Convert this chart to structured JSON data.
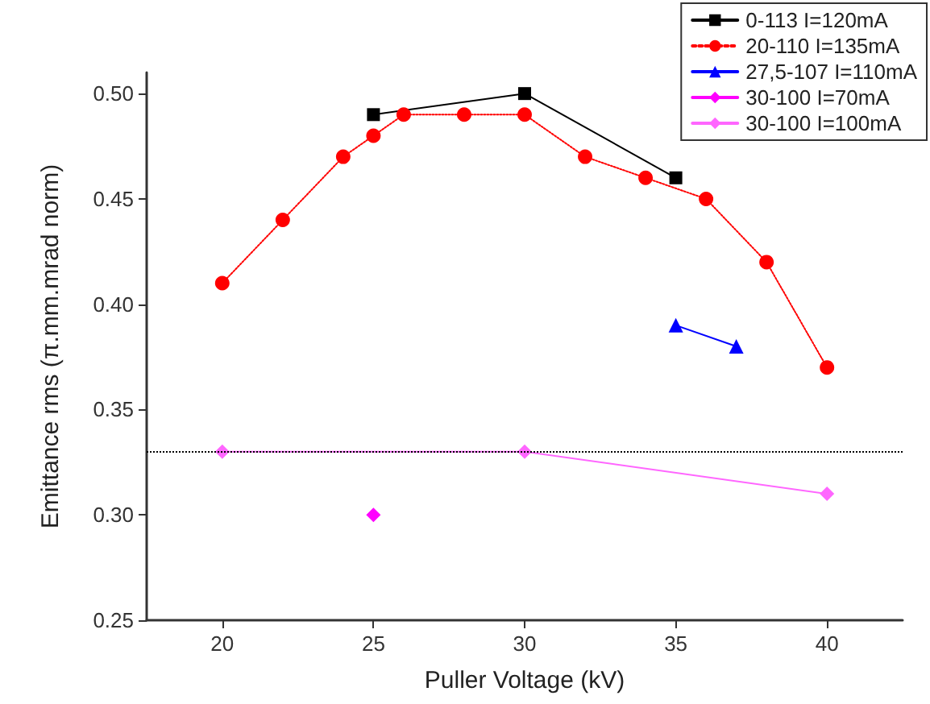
{
  "chart_data": {
    "type": "line",
    "xlabel": "Puller Voltage (kV)",
    "ylabel": "Emittance rms (π.mm.mrad norm)",
    "xlim": [
      17.5,
      42.5
    ],
    "xticks": [
      20,
      25,
      30,
      35,
      40
    ],
    "ylim": [
      0.25,
      0.51
    ],
    "yticks": [
      {
        "value": 0.25,
        "label": "0.25"
      },
      {
        "value": 0.3,
        "label": "0.30"
      },
      {
        "value": 0.35,
        "label": "0.35"
      },
      {
        "value": 0.4,
        "label": "0.40"
      },
      {
        "value": 0.45,
        "label": "0.45"
      },
      {
        "value": 0.5,
        "label": "0.50"
      }
    ],
    "grid": false,
    "legend": "top right",
    "ref_lines": [
      {
        "axis": "y",
        "value": 0.33,
        "color": "#000000",
        "line_style": "dotted"
      }
    ],
    "series": [
      {
        "name": "0-113 I=120mA",
        "color": "#000000",
        "marker": "square",
        "line_style": "solid",
        "x": [
          25,
          30,
          35
        ],
        "values": [
          0.49,
          0.5,
          0.46
        ]
      },
      {
        "name": "20-110 I=135mA",
        "color": "#ff0000",
        "marker": "circle",
        "line_style": "dotted",
        "x": [
          20,
          22,
          24,
          25,
          26,
          28,
          30,
          32,
          34,
          36,
          38,
          40
        ],
        "values": [
          0.41,
          0.44,
          0.47,
          0.48,
          0.49,
          0.49,
          0.49,
          0.47,
          0.46,
          0.45,
          0.42,
          0.37
        ]
      },
      {
        "name": "27,5-107 I=110mA",
        "color": "#0000ff",
        "marker": "triangle",
        "line_style": "solid",
        "x": [
          35,
          37
        ],
        "values": [
          0.39,
          0.38
        ]
      },
      {
        "name": "30-100 I=70mA",
        "color": "#ff00ff",
        "marker": "diamond",
        "line_style": "solid",
        "x": [
          25
        ],
        "values": [
          0.3
        ]
      },
      {
        "name": "30-100 I=100mA",
        "color": "#ff66ff",
        "marker": "diamond",
        "line_style": "solid",
        "x": [
          20,
          30,
          40
        ],
        "values": [
          0.33,
          0.33,
          0.31
        ]
      }
    ]
  }
}
